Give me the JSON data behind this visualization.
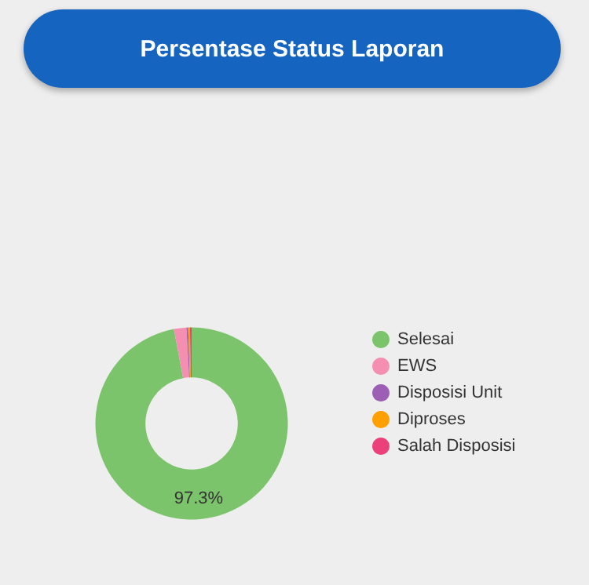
{
  "chart_data": {
    "type": "donut",
    "title": "Persentase Status Laporan",
    "categories": [
      "Selesai",
      "EWS",
      "Disposisi Unit",
      "Diproses",
      "Salah Disposisi"
    ],
    "values": [
      97.3,
      2.1,
      0.2,
      0.3,
      0.1
    ],
    "colors": [
      "#7cc46b",
      "#f48fb1",
      "#9c5fb5",
      "#ffa000",
      "#ec407a"
    ],
    "value_labels": [
      "97.3%",
      null,
      null,
      null,
      null
    ],
    "legend": "right"
  }
}
